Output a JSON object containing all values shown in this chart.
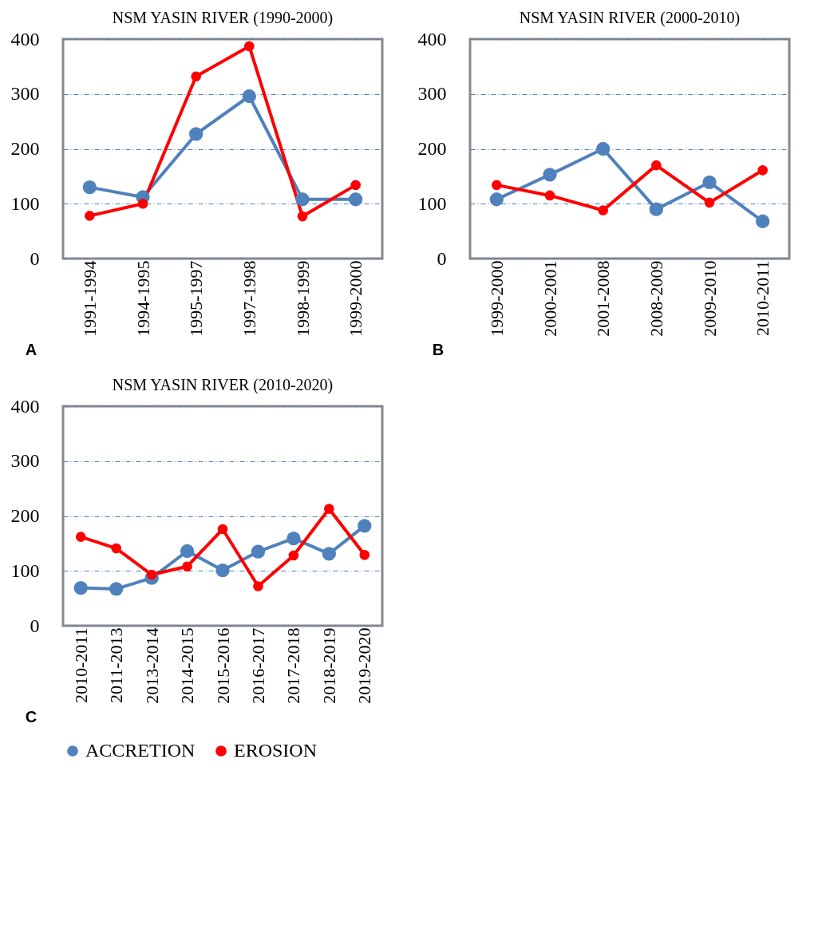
{
  "chart_data": [
    {
      "type": "line",
      "title": "NSM YASIN RIVER (1990-2000)",
      "categories": [
        "1991-1994",
        "1994-1995",
        "1995-1997",
        "1997-1998",
        "1998-1999",
        "1999-2000"
      ],
      "series": [
        {
          "name": "ACCRETION",
          "color": "#4f81bd",
          "values": [
            130,
            112,
            227,
            296,
            108,
            108
          ]
        },
        {
          "name": "EROSION",
          "color": "#ff0000",
          "values": [
            78,
            100,
            332,
            387,
            77,
            134
          ]
        }
      ],
      "ylim": [
        0,
        400
      ],
      "yticks": [
        0,
        100,
        200,
        300,
        400
      ],
      "grid": "y",
      "legend": "bottom",
      "marker": "circle",
      "line_style": "solid",
      "annotations": [
        "A"
      ]
    },
    {
      "type": "line",
      "title": "NSM YASIN RIVER (2000-2010)",
      "categories": [
        "1999-2000",
        "2000-2001",
        "2001-2008",
        "2008-2009",
        "2009-2010",
        "2010-2011"
      ],
      "series": [
        {
          "name": "ACCRETION",
          "color": "#4f81bd",
          "values": [
            108,
            153,
            200,
            90,
            139,
            68
          ]
        },
        {
          "name": "EROSION",
          "color": "#ff0000",
          "values": [
            134,
            115,
            88,
            170,
            102,
            161
          ]
        }
      ],
      "ylim": [
        0,
        400
      ],
      "yticks": [
        0,
        100,
        200,
        300,
        400
      ],
      "grid": "y",
      "legend": "bottom",
      "marker": "circle",
      "line_style": "solid",
      "annotations": [
        "B"
      ]
    },
    {
      "type": "line",
      "title": "NSM YASIN RIVER (2010-2020)",
      "categories": [
        "2010-2011",
        "2011-2013",
        "2013-2014",
        "2014-2015",
        "2015-2016",
        "2016-2017",
        "2017-2018",
        "2018-2019",
        "2019-2020"
      ],
      "series": [
        {
          "name": "ACCRETION",
          "color": "#4f81bd",
          "values": [
            69,
            67,
            87,
            136,
            101,
            135,
            159,
            131,
            182
          ]
        },
        {
          "name": "EROSION",
          "color": "#ff0000",
          "values": [
            162,
            141,
            93,
            108,
            176,
            72,
            128,
            213,
            129
          ]
        }
      ],
      "ylim": [
        0,
        400
      ],
      "yticks": [
        0,
        100,
        200,
        300,
        400
      ],
      "grid": "y",
      "legend": "bottom",
      "marker": "circle",
      "line_style": "solid",
      "annotations": [
        "C"
      ]
    }
  ]
}
